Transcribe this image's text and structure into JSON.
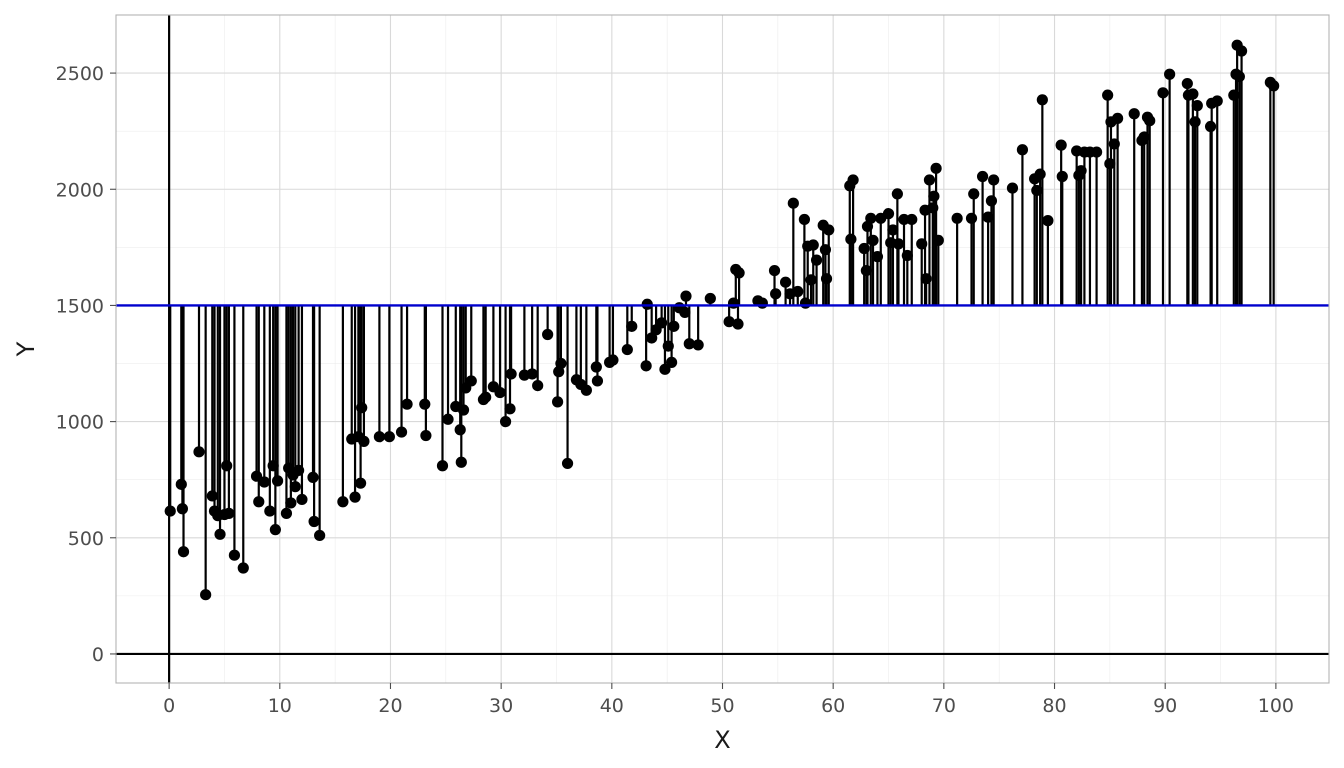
{
  "chart_data": {
    "type": "scatter",
    "xlabel": "X",
    "ylabel": "Y",
    "xlim": [
      -4.8,
      104.8
    ],
    "ylim": [
      -125,
      2750
    ],
    "x_ticks": [
      0,
      10,
      20,
      30,
      40,
      50,
      60,
      70,
      80,
      90,
      100
    ],
    "x_tick_labels": [
      "0",
      "10",
      "20",
      "30",
      "40",
      "50",
      "60",
      "70",
      "80",
      "90",
      "100"
    ],
    "y_ticks": [
      0,
      500,
      1000,
      1500,
      2000,
      2500
    ],
    "y_tick_labels": [
      "0",
      "500",
      "1000",
      "1500",
      "2000",
      "2500"
    ],
    "grid": true,
    "baseline": 1500,
    "colors": {
      "points": "#000000",
      "stems": "#000000",
      "baseline": "#0000cd",
      "zero_lines": "#000000"
    },
    "points": [
      [
        0.1,
        615
      ],
      [
        1.1,
        730
      ],
      [
        1.2,
        625
      ],
      [
        1.3,
        440
      ],
      [
        2.7,
        870
      ],
      [
        3.3,
        255
      ],
      [
        3.9,
        680
      ],
      [
        4.1,
        615
      ],
      [
        4.4,
        595
      ],
      [
        4.6,
        515
      ],
      [
        5.0,
        600
      ],
      [
        5.2,
        810
      ],
      [
        5.4,
        605
      ],
      [
        5.9,
        425
      ],
      [
        6.7,
        370
      ],
      [
        7.9,
        765
      ],
      [
        8.1,
        655
      ],
      [
        8.6,
        740
      ],
      [
        9.1,
        615
      ],
      [
        9.4,
        810
      ],
      [
        9.6,
        535
      ],
      [
        9.8,
        745
      ],
      [
        10.6,
        605
      ],
      [
        10.8,
        800
      ],
      [
        11.0,
        650
      ],
      [
        11.2,
        770
      ],
      [
        11.4,
        720
      ],
      [
        11.7,
        790
      ],
      [
        12.0,
        665
      ],
      [
        13.0,
        760
      ],
      [
        13.1,
        570
      ],
      [
        13.6,
        510
      ],
      [
        15.7,
        655
      ],
      [
        16.5,
        925
      ],
      [
        16.8,
        675
      ],
      [
        17.1,
        935
      ],
      [
        17.3,
        735
      ],
      [
        17.4,
        1060
      ],
      [
        17.6,
        915
      ],
      [
        19.0,
        935
      ],
      [
        19.9,
        935
      ],
      [
        21.0,
        955
      ],
      [
        21.5,
        1075
      ],
      [
        23.1,
        1075
      ],
      [
        23.2,
        940
      ],
      [
        24.7,
        810
      ],
      [
        25.2,
        1010
      ],
      [
        25.9,
        1065
      ],
      [
        26.3,
        965
      ],
      [
        26.4,
        825
      ],
      [
        26.6,
        1050
      ],
      [
        26.8,
        1145
      ],
      [
        27.3,
        1175
      ],
      [
        28.4,
        1095
      ],
      [
        28.6,
        1105
      ],
      [
        29.3,
        1150
      ],
      [
        29.9,
        1125
      ],
      [
        30.4,
        1000
      ],
      [
        30.8,
        1055
      ],
      [
        30.9,
        1205
      ],
      [
        32.1,
        1200
      ],
      [
        32.8,
        1205
      ],
      [
        33.3,
        1155
      ],
      [
        34.2,
        1375
      ],
      [
        35.1,
        1085
      ],
      [
        35.2,
        1215
      ],
      [
        35.4,
        1250
      ],
      [
        36.0,
        820
      ],
      [
        36.8,
        1180
      ],
      [
        37.2,
        1160
      ],
      [
        37.7,
        1135
      ],
      [
        38.6,
        1235
      ],
      [
        38.7,
        1175
      ],
      [
        39.8,
        1255
      ],
      [
        40.1,
        1265
      ],
      [
        41.4,
        1310
      ],
      [
        41.8,
        1410
      ],
      [
        43.1,
        1240
      ],
      [
        43.2,
        1505
      ],
      [
        43.6,
        1360
      ],
      [
        44.0,
        1395
      ],
      [
        44.5,
        1425
      ],
      [
        44.8,
        1225
      ],
      [
        45.1,
        1325
      ],
      [
        45.4,
        1255
      ],
      [
        45.6,
        1410
      ],
      [
        46.1,
        1490
      ],
      [
        46.6,
        1470
      ],
      [
        46.7,
        1540
      ],
      [
        47.0,
        1335
      ],
      [
        47.8,
        1330
      ],
      [
        48.9,
        1530
      ],
      [
        50.6,
        1430
      ],
      [
        51.0,
        1510
      ],
      [
        51.2,
        1655
      ],
      [
        51.4,
        1420
      ],
      [
        51.5,
        1640
      ],
      [
        53.2,
        1520
      ],
      [
        53.6,
        1510
      ],
      [
        54.7,
        1650
      ],
      [
        54.8,
        1550
      ],
      [
        55.7,
        1600
      ],
      [
        56.1,
        1550
      ],
      [
        56.4,
        1940
      ],
      [
        56.8,
        1560
      ],
      [
        57.4,
        1870
      ],
      [
        57.5,
        1510
      ],
      [
        57.7,
        1755
      ],
      [
        58.0,
        1610
      ],
      [
        58.2,
        1760
      ],
      [
        58.5,
        1695
      ],
      [
        59.1,
        1845
      ],
      [
        59.3,
        1740
      ],
      [
        59.4,
        1615
      ],
      [
        59.6,
        1825
      ],
      [
        61.5,
        2015
      ],
      [
        61.6,
        1785
      ],
      [
        61.8,
        2040
      ],
      [
        62.8,
        1745
      ],
      [
        63.0,
        1650
      ],
      [
        63.1,
        1840
      ],
      [
        63.4,
        1875
      ],
      [
        63.6,
        1780
      ],
      [
        64.0,
        1710
      ],
      [
        64.3,
        1875
      ],
      [
        65.0,
        1895
      ],
      [
        65.2,
        1770
      ],
      [
        65.4,
        1825
      ],
      [
        65.8,
        1980
      ],
      [
        65.9,
        1765
      ],
      [
        66.4,
        1870
      ],
      [
        66.7,
        1715
      ],
      [
        67.1,
        1870
      ],
      [
        68.0,
        1765
      ],
      [
        68.3,
        1910
      ],
      [
        68.4,
        1615
      ],
      [
        68.7,
        2040
      ],
      [
        69.0,
        1920
      ],
      [
        69.1,
        1970
      ],
      [
        69.3,
        2090
      ],
      [
        69.5,
        1780
      ],
      [
        71.2,
        1875
      ],
      [
        72.5,
        1875
      ],
      [
        72.7,
        1980
      ],
      [
        73.5,
        2055
      ],
      [
        74.0,
        1880
      ],
      [
        74.3,
        1950
      ],
      [
        74.5,
        2040
      ],
      [
        76.2,
        2005
      ],
      [
        77.1,
        2170
      ],
      [
        78.2,
        2045
      ],
      [
        78.4,
        1995
      ],
      [
        78.7,
        2065
      ],
      [
        78.9,
        2385
      ],
      [
        79.4,
        1865
      ],
      [
        80.6,
        2190
      ],
      [
        80.7,
        2055
      ],
      [
        82.0,
        2165
      ],
      [
        82.2,
        2060
      ],
      [
        82.4,
        2080
      ],
      [
        82.7,
        2160
      ],
      [
        83.2,
        2160
      ],
      [
        83.8,
        2160
      ],
      [
        84.8,
        2405
      ],
      [
        85.0,
        2110
      ],
      [
        85.1,
        2290
      ],
      [
        85.4,
        2195
      ],
      [
        85.7,
        2305
      ],
      [
        87.2,
        2325
      ],
      [
        87.9,
        2210
      ],
      [
        88.1,
        2225
      ],
      [
        88.4,
        2310
      ],
      [
        88.6,
        2295
      ],
      [
        89.8,
        2415
      ],
      [
        90.4,
        2495
      ],
      [
        92.0,
        2455
      ],
      [
        92.1,
        2405
      ],
      [
        92.5,
        2410
      ],
      [
        92.7,
        2290
      ],
      [
        92.9,
        2360
      ],
      [
        94.1,
        2270
      ],
      [
        94.2,
        2370
      ],
      [
        94.7,
        2380
      ],
      [
        96.2,
        2405
      ],
      [
        96.4,
        2495
      ],
      [
        96.5,
        2620
      ],
      [
        96.7,
        2485
      ],
      [
        96.9,
        2595
      ],
      [
        99.5,
        2460
      ],
      [
        99.8,
        2445
      ]
    ]
  }
}
